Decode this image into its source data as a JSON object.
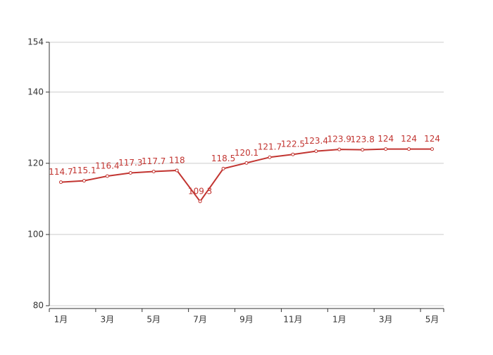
{
  "chart_data": {
    "type": "line",
    "categories": [
      "1月",
      null,
      "3月",
      null,
      "5月",
      null,
      "7月",
      null,
      "9月",
      null,
      "11月",
      null,
      "1月",
      null,
      "3月",
      null,
      "5月"
    ],
    "values": [
      114.7,
      115.1,
      116.4,
      117.3,
      117.7,
      118,
      109.3,
      118.5,
      120.1,
      121.7,
      122.5,
      123.4,
      123.9,
      123.8,
      124,
      124,
      124
    ],
    "color": "#c23531",
    "ylim": [
      80,
      154
    ],
    "yticks": [
      80,
      100,
      120,
      140,
      154
    ],
    "grid": true
  }
}
